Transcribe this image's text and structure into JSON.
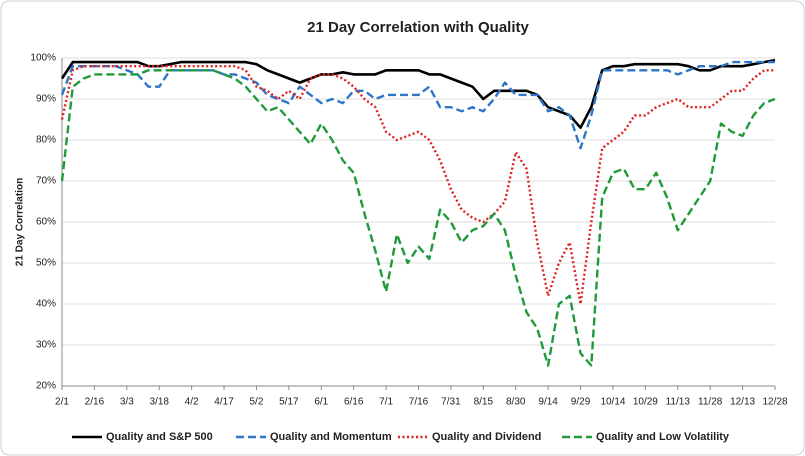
{
  "chart_data": {
    "type": "line",
    "title": "21 Day Correlation with Quality",
    "y_label": "21 Day Correlation",
    "categories": [
      "2/1",
      null,
      null,
      "2/16",
      null,
      null,
      "3/3",
      null,
      null,
      "3/18",
      null,
      null,
      "4/2",
      null,
      null,
      "4/17",
      null,
      null,
      "5/2",
      null,
      null,
      "5/17",
      null,
      null,
      "6/1",
      null,
      null,
      "6/16",
      null,
      null,
      "7/1",
      null,
      null,
      "7/16",
      null,
      null,
      "7/31",
      null,
      null,
      "8/15",
      null,
      null,
      "8/30",
      null,
      null,
      "9/14",
      null,
      null,
      "9/29",
      null,
      null,
      "10/14",
      null,
      null,
      "10/29",
      null,
      null,
      "11/13",
      null,
      null,
      "11/28",
      null,
      null,
      "12/13",
      null,
      null,
      "12/28"
    ],
    "ylim": [
      20,
      100
    ],
    "yticks": [
      {
        "value": 20,
        "label": "20%"
      },
      {
        "value": 30,
        "label": "30%"
      },
      {
        "value": 40,
        "label": "40%"
      },
      {
        "value": 50,
        "label": "50%"
      },
      {
        "value": 60,
        "label": "60%"
      },
      {
        "value": 70,
        "label": "70%"
      },
      {
        "value": 80,
        "label": "80%"
      },
      {
        "value": 90,
        "label": "90%"
      },
      {
        "value": 100,
        "label": "100%"
      }
    ],
    "grid": true,
    "legend": "bottom",
    "series": [
      {
        "name": "Quality and S&P 500",
        "color": "#000000",
        "dash": "solid",
        "values": [
          95,
          99,
          99,
          99,
          99,
          99,
          99,
          99,
          98,
          98,
          98.5,
          99,
          99,
          99,
          99,
          99,
          99,
          99,
          98.5,
          97,
          96,
          95,
          94,
          95,
          96,
          96,
          96.5,
          96,
          96,
          96,
          97,
          97,
          97,
          97,
          96,
          96,
          95,
          94,
          93,
          90,
          92,
          92,
          92,
          92,
          91,
          88,
          87,
          86,
          83,
          88,
          97,
          98,
          98,
          98.5,
          98.5,
          98.5,
          98.5,
          98.5,
          98,
          97,
          97,
          98,
          98,
          98,
          98.5,
          99,
          99.5
        ]
      },
      {
        "name": "Quality and Momentum",
        "color": "#2e75c6",
        "dash": "dashed",
        "values": [
          91,
          98,
          98,
          98,
          98,
          98,
          97,
          96,
          93,
          93,
          97,
          97,
          97,
          97,
          97,
          96,
          96,
          95,
          94,
          91,
          90,
          89,
          93,
          91,
          89,
          90,
          89,
          92,
          92,
          90,
          91,
          91,
          91,
          91,
          93,
          88,
          88,
          87,
          88,
          87,
          90,
          94,
          91,
          91,
          91,
          87,
          88,
          86,
          78,
          86,
          97,
          97,
          97,
          97,
          97,
          97,
          97,
          96,
          97,
          98,
          98,
          98,
          99,
          99,
          99,
          99,
          99
        ]
      },
      {
        "name": "Quality and Dividend",
        "color": "#e02020",
        "dash": "dotted",
        "values": [
          85,
          97,
          98,
          98,
          98,
          98,
          98,
          98,
          98,
          98,
          98,
          98,
          98,
          98,
          98,
          98,
          98,
          97,
          93,
          92,
          90,
          92,
          90,
          95,
          96,
          96,
          95,
          93,
          90,
          88,
          82,
          80,
          81,
          82,
          80,
          75,
          68,
          63,
          61,
          60,
          62,
          65,
          77,
          73,
          55,
          42,
          50,
          55,
          40,
          60,
          78,
          80,
          82,
          86,
          86,
          88,
          89,
          90,
          88,
          88,
          88,
          90,
          92,
          92,
          95,
          97,
          97
        ]
      },
      {
        "name": "Quality and Low Volatility",
        "color": "#1f9a3a",
        "dash": "dashed",
        "values": [
          70,
          93,
          95,
          96,
          96,
          96,
          96,
          96,
          97,
          97,
          97,
          97,
          97,
          97,
          97,
          96,
          95,
          93,
          90,
          87,
          88,
          85,
          82,
          79,
          84,
          80,
          75,
          72,
          62,
          53,
          43,
          57,
          50,
          54,
          51,
          63,
          60,
          55,
          58,
          59,
          62,
          58,
          47,
          38,
          34,
          25,
          40,
          42,
          28,
          25,
          66,
          72,
          73,
          68,
          68,
          72,
          66,
          58,
          62,
          66,
          70,
          84,
          82,
          81,
          86,
          89,
          90
        ]
      }
    ]
  }
}
